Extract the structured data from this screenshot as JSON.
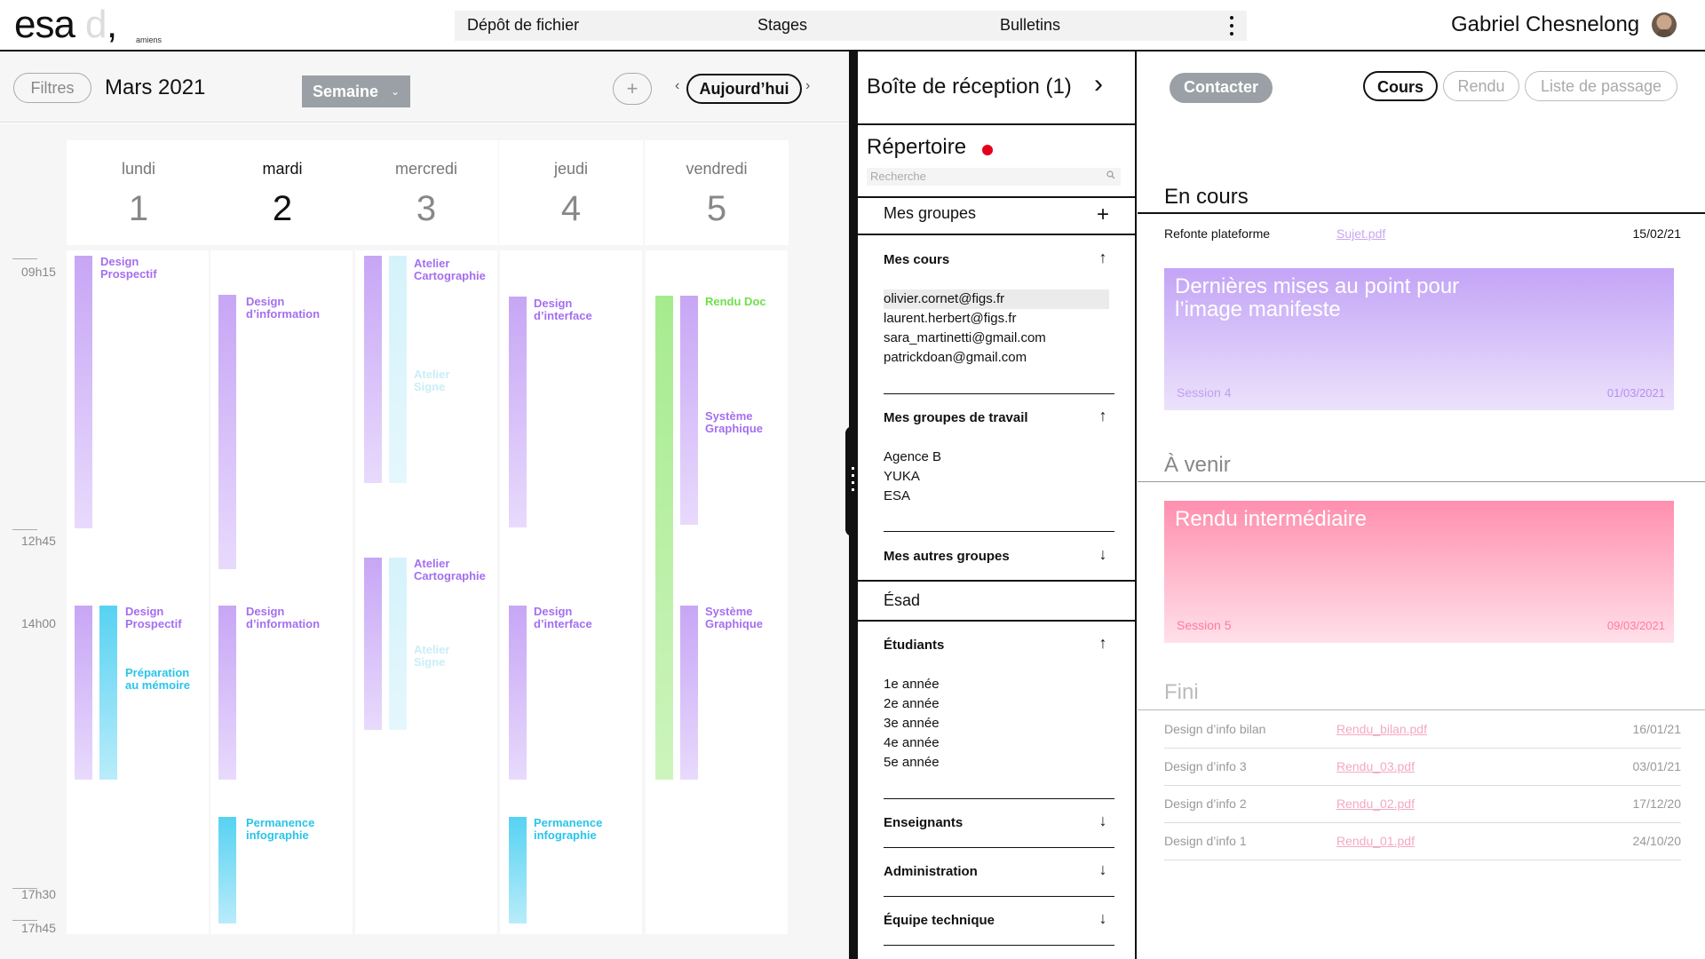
{
  "header": {
    "logo_text": "esa",
    "logo_ghost": "d",
    "logo_comma": ",",
    "logo_sub": "amiens",
    "nav": [
      "Dépôt de fichier",
      "Stages",
      "Bulletins"
    ],
    "user_name": "Gabriel Chesnelong"
  },
  "calendar": {
    "filters_label": "Filtres",
    "month": "Mars 2021",
    "view_select": "Semaine",
    "add_label": "+",
    "prev_label": "‹",
    "today_label": "Aujourd’hui",
    "next_label": "›",
    "days": [
      {
        "name": "lundi",
        "num": "1"
      },
      {
        "name": "mardi",
        "num": "2"
      },
      {
        "name": "mercredi",
        "num": "3"
      },
      {
        "name": "jeudi",
        "num": "4"
      },
      {
        "name": "vendredi",
        "num": "5"
      }
    ],
    "times": [
      "09h15",
      "12h45",
      "14h00",
      "17h30",
      "17h45"
    ],
    "events": {
      "mon_am": [
        "Design",
        "Prospectif"
      ],
      "mon_pm1": [
        "Design",
        "Prospectif"
      ],
      "mon_pm2": [
        "Préparation",
        "au mémoire"
      ],
      "tue_am": [
        "Design",
        "d’information"
      ],
      "tue_pm": [
        "Design",
        "d’information"
      ],
      "tue_late": [
        "Permanence",
        "infographie"
      ],
      "wed_am1": [
        "Atelier",
        "Cartographie"
      ],
      "wed_am2": [
        "Atelier",
        "Signe"
      ],
      "wed_pm1": [
        "Atelier",
        "Cartographie"
      ],
      "wed_pm2": [
        "Atelier",
        "Signe"
      ],
      "thu_am": [
        "Design",
        "d’interface"
      ],
      "thu_pm": [
        "Design",
        "d’interface"
      ],
      "thu_late": [
        "Permanence",
        "infographie"
      ],
      "fri_doc": "Rendu Doc",
      "fri_am": [
        "Système",
        "Graphique"
      ],
      "fri_pm": [
        "Système",
        "Graphique"
      ]
    }
  },
  "middle": {
    "inbox": "Boîte de réception (1)",
    "inbox_arrow": "›",
    "directory": "Répertoire",
    "search_placeholder": "Recherche",
    "my_groups": "Mes groupes",
    "my_groups_add": "+",
    "my_courses": "Mes cours",
    "course_emails": [
      "olivier.cornet@figs.fr",
      "laurent.herbert@figs.fr",
      "sara_martinetti@gmail.com",
      "patrickdoan@gmail.com"
    ],
    "work_groups": "Mes groupes de travail",
    "work_group_items": [
      "Agence B",
      "YUKA",
      "ESA"
    ],
    "other_groups": "Mes autres groupes",
    "esad": "Ésad",
    "students": "Étudiants",
    "years": [
      "1e année",
      "2e année",
      "3e année",
      "4e année",
      "5e année"
    ],
    "teachers": "Enseignants",
    "administration": "Administration",
    "tech_team": "Équipe technique",
    "arrow_up": "↑",
    "arrow_down": "↓"
  },
  "right": {
    "contact": "Contacter",
    "tabs": [
      "Cours",
      "Rendu",
      "Liste de passage"
    ],
    "in_progress": "En cours",
    "current_row": {
      "name": "Refonte plateforme",
      "file": "Sujet.pdf",
      "date": "15/02/21"
    },
    "card1": {
      "title": "Dernières mises au point pour l’image manifeste",
      "session": "Session 4",
      "date": "01/03/2021"
    },
    "upcoming": "À venir",
    "card2": {
      "title": "Rendu intermédiaire",
      "session": "Session 5",
      "date": "09/03/2021"
    },
    "done": "Fini",
    "done_rows": [
      {
        "name": "Design d’info bilan",
        "file": "Rendu_bilan.pdf",
        "date": "16/01/21"
      },
      {
        "name": "Design d’info 3",
        "file": "Rendu_03.pdf",
        "date": "03/01/21"
      },
      {
        "name": "Design d’info 2",
        "file": "Rendu_02.pdf",
        "date": "17/12/20"
      },
      {
        "name": "Design d’info 1",
        "file": "Rendu_01.pdf",
        "date": "24/10/20"
      }
    ],
    "colors": {
      "purple": "#c7a6f5",
      "pink": "#ff8fae",
      "link_pink": "#f4a9c1"
    }
  }
}
